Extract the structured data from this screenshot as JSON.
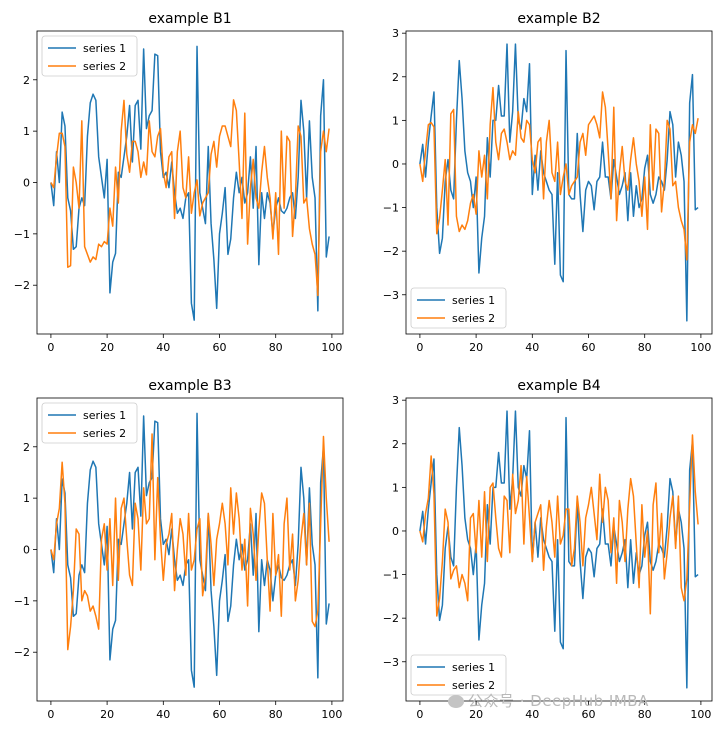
{
  "chart_data": [
    {
      "type": "line",
      "title": "example B1",
      "xlabel": "",
      "ylabel": "",
      "xlim": [
        -4.95,
        103.95
      ],
      "ylim": [
        -2.95,
        2.95
      ],
      "xticks": [
        0,
        20,
        40,
        60,
        80,
        100
      ],
      "yticks": [
        -2,
        -1,
        0,
        1,
        2
      ],
      "legend": "upper left",
      "series": [
        {
          "name": "series 1",
          "color": "#1f77b4",
          "x_start": 0,
          "values": [
            0,
            -0.45,
            0.6,
            0,
            1.37,
            1.1,
            -0.3,
            -0.55,
            -1.3,
            -1.25,
            -0.5,
            -0.3,
            -0.45,
            0.9,
            1.55,
            1.72,
            1.6,
            0.5,
            0.1,
            -0.3,
            0.45,
            -2.15,
            -1.55,
            -1.38,
            0.2,
            0.1,
            0.5,
            0.9,
            1.5,
            0.4,
            1.5,
            1.6,
            0.65,
            2.6,
            1.05,
            1.3,
            1.4,
            2.5,
            2.47,
            0.6,
            0.1,
            0.2,
            -0.1,
            0.4,
            -0.2,
            -0.6,
            -0.5,
            -0.7,
            -0.3,
            -0.2,
            -2.35,
            -2.68,
            2.65,
            -0.2,
            -0.5,
            -0.8,
            0.7,
            -0.8,
            -1.5,
            -2.45,
            -1.0,
            -0.6,
            -0.1,
            -1.4,
            -1.1,
            -0.3,
            0.2,
            -0.2,
            0.1,
            -0.4,
            -0.2,
            0.5,
            -0.5,
            0.7,
            -1.6,
            -0.2,
            -0.7,
            -0.2,
            -0.4,
            -1.0,
            -0.5,
            -0.3,
            -0.55,
            -0.6,
            -0.5,
            -0.3,
            -0.2,
            -0.7,
            0.1,
            1.6,
            1.0,
            -0.3,
            1.2,
            0.1,
            -0.3,
            -2.5,
            1.3,
            2.0,
            -1.45,
            -1.05
          ]
        },
        {
          "name": "series 2",
          "color": "#ff7f0e",
          "x_start": 0,
          "values": [
            0.0,
            -0.1,
            0.5,
            0.96,
            0.96,
            0.7,
            -1.65,
            -1.62,
            0.3,
            0.0,
            -0.5,
            1.2,
            -1.25,
            -1.4,
            -1.55,
            -1.45,
            -1.5,
            -1.2,
            -1.25,
            -1.15,
            -1.2,
            -0.5,
            -0.85,
            0.3,
            -0.4,
            1.0,
            1.6,
            0.55,
            0.2,
            0.8,
            0.8,
            0.6,
            0.1,
            0.4,
            0.15,
            1.2,
            0.6,
            0.5,
            0.9,
            1.05,
            0.2,
            -0.1,
            0.5,
            0.6,
            -0.7,
            0.6,
            1.0,
            -0.1,
            -0.3,
            0.5,
            -0.6,
            -0.2,
            0.05,
            -0.65,
            -0.4,
            -0.3,
            -0.2,
            0.55,
            0.8,
            0.3,
            0.9,
            1.1,
            1.1,
            0.9,
            0.7,
            1.61,
            1.4,
            0.4,
            -0.7,
            1.35,
            -1.2,
            -0.1,
            0.45,
            -0.3,
            -0.5,
            0.2,
            0.7,
            0.1,
            -0.3,
            -1.1,
            -0.2,
            -1.4,
            1.0,
            -0.5,
            0.9,
            0.8,
            -1.05,
            -0.3,
            1.1,
            0.9,
            -0.4,
            -0.3,
            -0.9,
            -1.2,
            -1.4,
            -2.2,
            0.6,
            1.0,
            0.6,
            1.05
          ]
        }
      ]
    },
    {
      "type": "line",
      "title": "example B2",
      "xlabel": "",
      "ylabel": "",
      "xlim": [
        -4.95,
        103.95
      ],
      "ylim": [
        -3.9,
        3.05
      ],
      "xticks": [
        0,
        20,
        40,
        60,
        80,
        100
      ],
      "yticks": [
        -3,
        -2,
        -1,
        0,
        1,
        2,
        3
      ],
      "legend": "lower left",
      "series": [
        {
          "name": "series 1",
          "color": "#1f77b4",
          "x_start": 0,
          "values": [
            0,
            0.45,
            -0.3,
            0.5,
            1.1,
            1.65,
            -1.0,
            -2.05,
            -1.7,
            -0.4,
            0.1,
            -0.6,
            -0.8,
            1.0,
            2.37,
            1.5,
            0.3,
            -0.2,
            -0.4,
            -1.0,
            -0.3,
            -2.5,
            -1.7,
            -1.2,
            0.6,
            -0.3,
            1.0,
            1.0,
            1.8,
            1.1,
            1.1,
            2.75,
            0.5,
            1.2,
            2.75,
            1.0,
            0.8,
            1.5,
            1.2,
            2.3,
            -0.7,
            0.2,
            -0.6,
            0.3,
            -0.2,
            -0.4,
            -0.6,
            -0.7,
            -2.3,
            -0.2,
            -2.55,
            -2.7,
            2.6,
            -0.7,
            -0.8,
            -0.8,
            0.7,
            -0.7,
            -1.55,
            -0.6,
            -0.4,
            -0.5,
            -1.05,
            -0.4,
            -0.3,
            0.5,
            -0.3,
            -0.3,
            -0.8,
            0.1,
            -0.3,
            -0.7,
            -0.5,
            -0.2,
            -1.3,
            -0.2,
            -1.2,
            -0.5,
            -1.0,
            -0.8,
            -0.1,
            0.2,
            -0.7,
            -0.9,
            -0.7,
            -0.3,
            -0.4,
            -0.6,
            0.1,
            1.2,
            0.9,
            -0.3,
            0.5,
            0.2,
            -0.4,
            -3.6,
            1.4,
            2.05,
            -1.05,
            -1.0
          ]
        },
        {
          "name": "series 2",
          "color": "#ff7f0e",
          "x_start": 0,
          "values": [
            0,
            -0.4,
            0.3,
            0.9,
            0.95,
            0.85,
            -1.6,
            -1.25,
            -0.6,
            0.1,
            -1.4,
            1.15,
            1.25,
            -1.2,
            -1.55,
            -1.4,
            -1.5,
            -1.3,
            -0.9,
            -0.7,
            -1.15,
            0.3,
            -0.3,
            0.2,
            -0.8,
            0.9,
            1.75,
            0.5,
            0.1,
            0.7,
            0.8,
            0.5,
            0.1,
            0.3,
            0.2,
            1.2,
            0.6,
            0.5,
            1.0,
            0.9,
            0.1,
            -0.2,
            0.5,
            0.6,
            -0.8,
            0.5,
            1.0,
            -0.2,
            -0.4,
            0.5,
            -0.7,
            -0.3,
            0.0,
            -0.7,
            -0.5,
            -0.4,
            -0.3,
            0.5,
            0.7,
            0.2,
            0.9,
            1.0,
            1.1,
            0.9,
            0.6,
            1.65,
            1.3,
            0.3,
            -0.8,
            1.3,
            -1.3,
            -0.2,
            0.4,
            -0.4,
            -0.6,
            0.1,
            0.6,
            0.0,
            -0.4,
            -1.2,
            -0.3,
            -1.5,
            0.9,
            -0.6,
            0.8,
            0.7,
            -1.1,
            -0.4,
            1.0,
            0.8,
            -0.5,
            -0.4,
            -1.0,
            -1.3,
            -1.5,
            -2.2,
            0.5,
            0.9,
            0.7,
            1.05
          ]
        }
      ]
    },
    {
      "type": "line",
      "title": "example B3",
      "xlabel": "",
      "ylabel": "",
      "xlim": [
        -4.95,
        103.95
      ],
      "ylim": [
        -2.95,
        2.95
      ],
      "xticks": [
        0,
        20,
        40,
        60,
        80,
        100
      ],
      "yticks": [
        -2,
        -1,
        0,
        1,
        2
      ],
      "legend": "upper left",
      "series": [
        {
          "name": "series 1",
          "color": "#1f77b4",
          "x_start": 0,
          "values": [
            0,
            -0.45,
            0.6,
            0,
            1.37,
            1.1,
            -0.3,
            -0.55,
            -1.3,
            -1.25,
            -0.5,
            -0.3,
            -0.45,
            0.9,
            1.55,
            1.72,
            1.6,
            0.5,
            0.1,
            -0.3,
            0.45,
            -2.15,
            -1.55,
            -1.38,
            0.2,
            0.1,
            0.5,
            0.9,
            1.5,
            0.4,
            1.5,
            1.6,
            0.65,
            2.6,
            1.05,
            1.3,
            1.4,
            2.5,
            2.47,
            0.6,
            0.1,
            0.2,
            -0.1,
            0.4,
            -0.2,
            -0.6,
            -0.5,
            -0.7,
            -0.3,
            -0.2,
            -2.35,
            -2.68,
            2.65,
            -0.2,
            -0.5,
            -0.8,
            0.7,
            -0.8,
            -1.5,
            -2.45,
            -1.0,
            -0.6,
            -0.1,
            -1.4,
            -1.1,
            -0.3,
            0.2,
            -0.2,
            0.1,
            -0.4,
            -0.2,
            0.5,
            -0.5,
            0.7,
            -1.6,
            -0.2,
            -0.7,
            -0.2,
            -0.4,
            -1.0,
            -0.5,
            -0.3,
            -0.55,
            -0.6,
            -0.5,
            -0.3,
            -0.2,
            -0.7,
            0.1,
            1.6,
            1.0,
            -0.3,
            1.2,
            0.1,
            -0.3,
            -2.5,
            1.3,
            2.0,
            -1.45,
            -1.05
          ]
        },
        {
          "name": "series 2",
          "color": "#ff7f0e",
          "x_start": 0,
          "values": [
            0,
            -0.2,
            0.5,
            0.8,
            1.7,
            0.9,
            -1.95,
            -1.5,
            -0.8,
            0.4,
            0.3,
            -1.0,
            -0.8,
            -0.9,
            -1.2,
            -1.1,
            -1.3,
            -1.55,
            0.2,
            0.5,
            -0.4,
            0.6,
            -0.7,
            1.0,
            -0.6,
            0.8,
            1.0,
            0.2,
            -0.5,
            -0.7,
            0.9,
            0.6,
            -0.4,
            1.2,
            0.5,
            0.6,
            2.25,
            -0.2,
            1.4,
            0.2,
            -0.6,
            0.1,
            0.3,
            0.7,
            -0.8,
            0.0,
            0.6,
            0.3,
            -0.5,
            0.7,
            -0.4,
            -0.2,
            0.4,
            0.6,
            -0.9,
            -0.5,
            0.7,
            0.1,
            -0.7,
            0.2,
            0.5,
            0.9,
            0.5,
            -0.3,
            1.2,
            0.3,
            1.1,
            0.6,
            -0.4,
            0.2,
            -1.1,
            0.8,
            0.3,
            -0.6,
            0.4,
            1.1,
            0.9,
            -0.2,
            -1.2,
            0.7,
            -0.5,
            -0.1,
            -1.3,
            0.5,
            1.0,
            -0.4,
            0.3,
            -1.0,
            -0.6,
            0.2,
            0.7,
            -0.3,
            0.9,
            -1.4,
            -1.5,
            -1.2,
            0.5,
            2.2,
            1.0,
            0.15
          ]
        }
      ]
    },
    {
      "type": "line",
      "title": "example B4",
      "xlabel": "",
      "ylabel": "",
      "xlim": [
        -4.95,
        103.95
      ],
      "ylim": [
        -3.9,
        3.05
      ],
      "xticks": [
        0,
        20,
        40,
        60,
        80,
        100
      ],
      "yticks": [
        -3,
        -2,
        -1,
        0,
        1,
        2,
        3
      ],
      "legend": "lower left",
      "series": [
        {
          "name": "series 1",
          "color": "#1f77b4",
          "x_start": 0,
          "values": [
            0,
            0.45,
            -0.3,
            0.5,
            1.1,
            1.65,
            -1.0,
            -2.05,
            -1.7,
            -0.4,
            0.1,
            -0.6,
            -0.8,
            1.0,
            2.37,
            1.5,
            0.3,
            -0.2,
            -0.4,
            -1.0,
            -0.3,
            -2.5,
            -1.7,
            -1.2,
            0.6,
            -0.3,
            1.0,
            1.0,
            1.8,
            1.1,
            1.1,
            2.75,
            0.5,
            1.2,
            2.75,
            1.0,
            0.8,
            1.5,
            1.2,
            2.3,
            -0.7,
            0.2,
            -0.6,
            0.3,
            -0.2,
            -0.4,
            -0.6,
            -0.7,
            -2.3,
            -0.2,
            -2.55,
            -2.7,
            2.6,
            -0.7,
            -0.8,
            -0.8,
            0.7,
            -0.7,
            -1.55,
            -0.6,
            -0.4,
            -0.5,
            -1.05,
            -0.4,
            -0.3,
            0.5,
            -0.3,
            -0.3,
            -0.8,
            0.1,
            -0.3,
            -0.7,
            -0.5,
            -0.2,
            -1.3,
            -0.2,
            -1.2,
            -0.5,
            -1.0,
            -0.8,
            -0.1,
            0.2,
            -0.7,
            -0.9,
            -0.7,
            -0.3,
            -0.4,
            -0.6,
            0.1,
            1.2,
            0.9,
            -0.3,
            0.5,
            0.2,
            -0.4,
            -3.6,
            1.4,
            2.05,
            -1.05,
            -1.0
          ]
        },
        {
          "name": "series 2",
          "color": "#ff7f0e",
          "x_start": 0,
          "values": [
            0,
            -0.25,
            0.4,
            0.75,
            1.72,
            0.85,
            -1.95,
            -1.55,
            -0.7,
            0.5,
            0.2,
            -1.1,
            -0.9,
            -0.8,
            -1.3,
            -1.0,
            -1.2,
            -1.6,
            0.3,
            0.4,
            -0.5,
            0.7,
            -0.6,
            0.9,
            -0.7,
            1.0,
            1.1,
            0.3,
            -0.4,
            -0.6,
            0.8,
            0.7,
            -0.5,
            1.3,
            0.4,
            0.7,
            1.5,
            -0.3,
            1.25,
            0.3,
            -0.7,
            0.2,
            0.4,
            0.6,
            -0.9,
            0.1,
            0.7,
            0.2,
            -0.6,
            0.8,
            -0.3,
            -0.1,
            0.5,
            0.5,
            -0.8,
            -0.4,
            0.8,
            0.2,
            -0.8,
            0.3,
            0.6,
            1.0,
            0.4,
            -0.2,
            1.3,
            0.2,
            1.0,
            0.7,
            -0.5,
            0.3,
            -1.2,
            0.7,
            0.2,
            -0.7,
            0.5,
            1.2,
            0.8,
            -0.3,
            -1.3,
            0.6,
            -0.6,
            0.0,
            -1.9,
            0.6,
            1.1,
            -0.5,
            0.4,
            -1.1,
            -0.5,
            0.3,
            0.8,
            -0.4,
            0.8,
            -1.3,
            -1.6,
            -1.1,
            0.6,
            2.2,
            0.9,
            0.15
          ]
        }
      ]
    }
  ],
  "watermark": {
    "text": "公众号 · DeepHub IMBA"
  }
}
